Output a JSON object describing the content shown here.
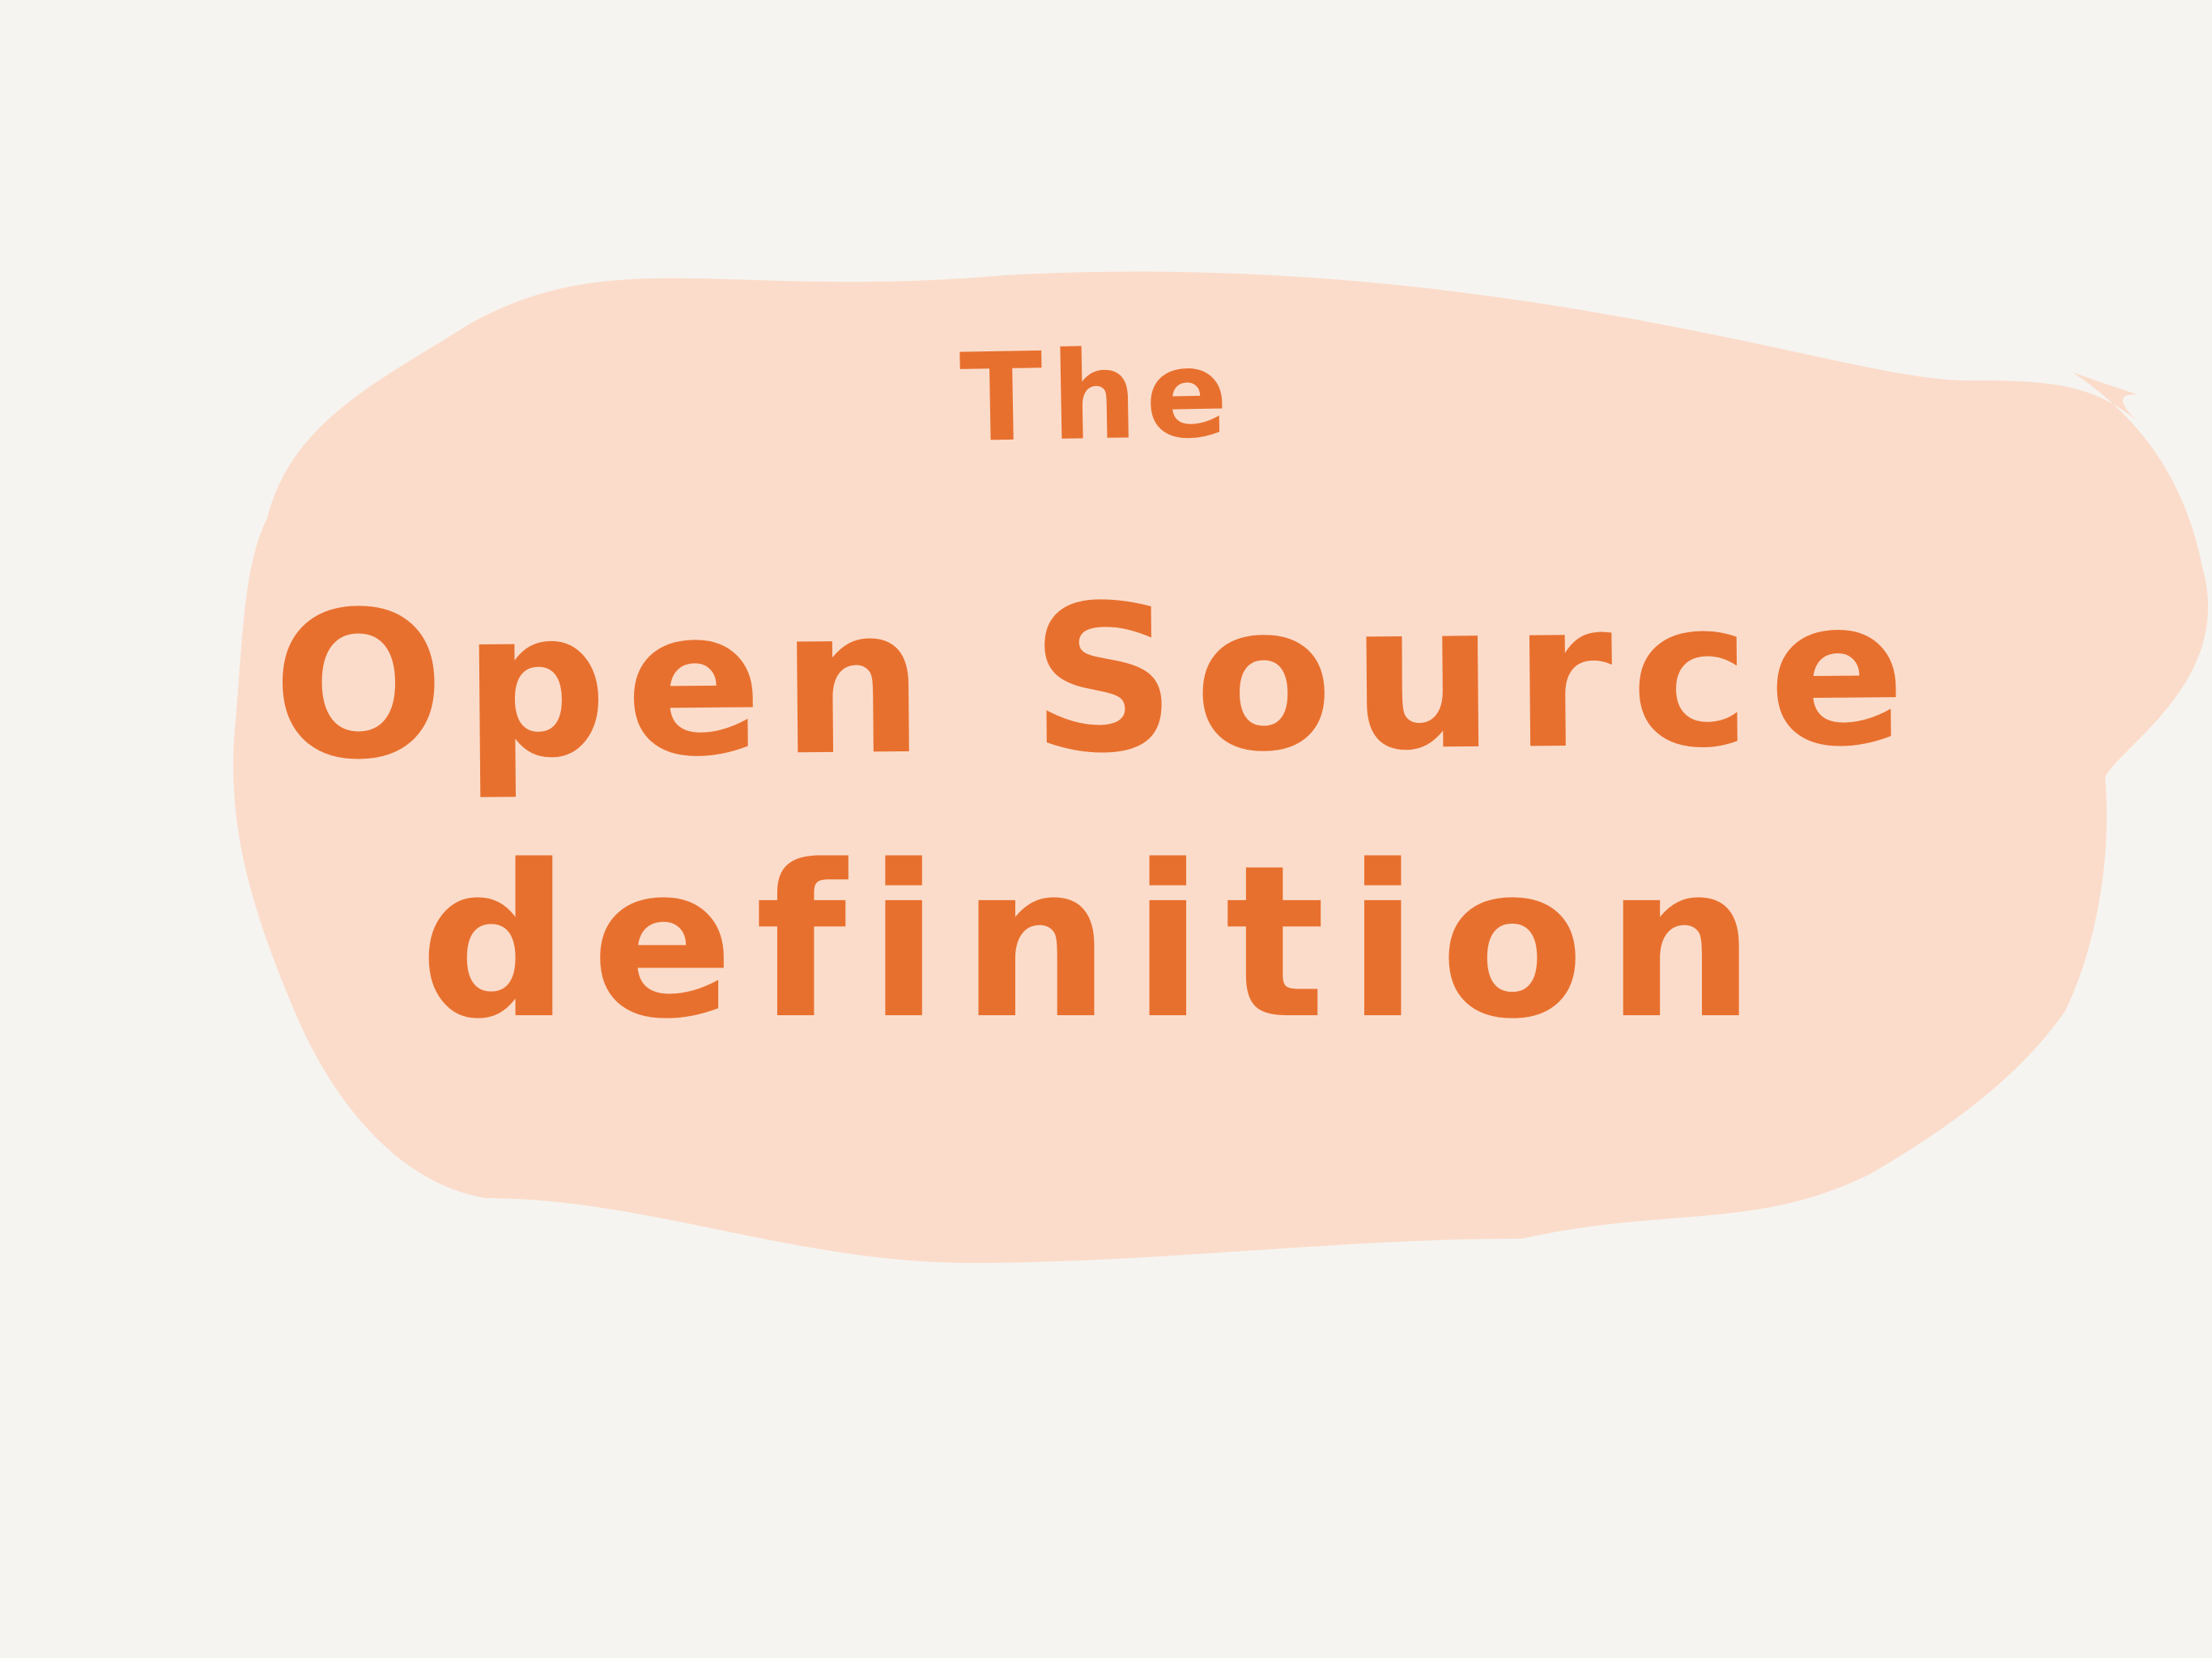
{
  "colors": {
    "background": "#f6f4f0",
    "blob": "#fbdccb",
    "text": "#e8702e"
  },
  "title": {
    "line1": "The",
    "line2": "Open Source",
    "line3": "definition"
  }
}
